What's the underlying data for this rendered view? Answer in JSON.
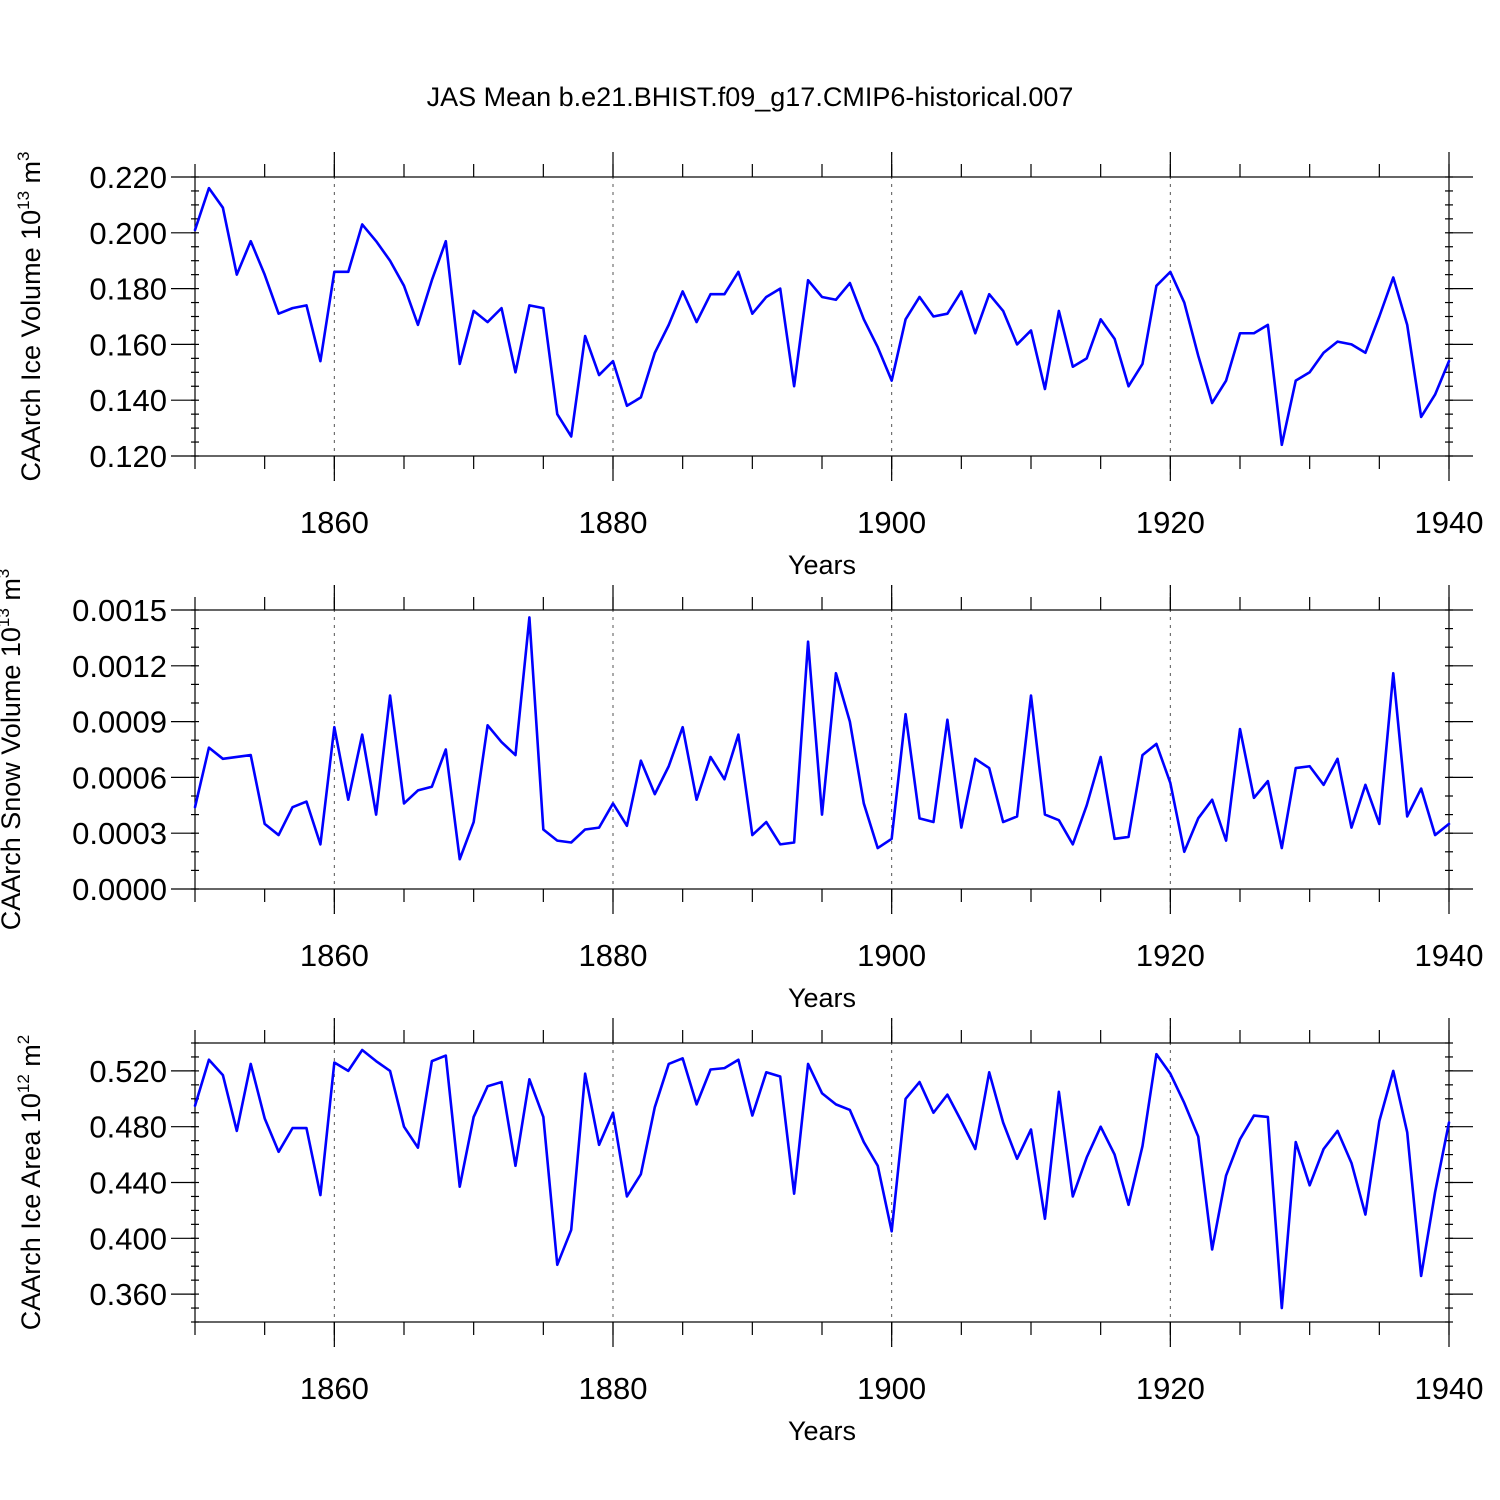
{
  "title": "JAS Mean b.e21.BHIST.f09_g17.CMIP6-historical.007",
  "chart_data": [
    {
      "type": "line",
      "ylabel": "CAArch Ice Volume 10",
      "ylabel_exp": "13",
      "ylabel_unit": " m",
      "ylabel_unit_exp": "3",
      "xlabel": "Years",
      "xlim": [
        1850,
        1940
      ],
      "ylim": [
        0.12,
        0.22
      ],
      "xticks": [
        1860,
        1880,
        1900,
        1920,
        1940
      ],
      "yticks": [
        0.12,
        0.14,
        0.16,
        0.18,
        0.2,
        0.22
      ],
      "ytick_labels": [
        "0.120",
        "0.140",
        "0.160",
        "0.180",
        "0.200",
        "0.220"
      ],
      "y_minor_step": 0.005,
      "grid": "dashed vertical lines at major x ticks",
      "color": "#0000ff",
      "x_start": 1850,
      "values": [
        0.201,
        0.216,
        0.209,
        0.185,
        0.197,
        0.185,
        0.171,
        0.173,
        0.174,
        0.154,
        0.186,
        0.186,
        0.203,
        0.197,
        0.19,
        0.181,
        0.167,
        0.183,
        0.197,
        0.153,
        0.172,
        0.168,
        0.173,
        0.15,
        0.174,
        0.173,
        0.135,
        0.127,
        0.163,
        0.149,
        0.154,
        0.138,
        0.141,
        0.157,
        0.167,
        0.179,
        0.168,
        0.178,
        0.178,
        0.186,
        0.171,
        0.177,
        0.18,
        0.145,
        0.183,
        0.177,
        0.176,
        0.182,
        0.169,
        0.159,
        0.147,
        0.169,
        0.177,
        0.17,
        0.171,
        0.179,
        0.164,
        0.178,
        0.172,
        0.16,
        0.165,
        0.144,
        0.172,
        0.152,
        0.155,
        0.169,
        0.162,
        0.145,
        0.153,
        0.181,
        0.186,
        0.175,
        0.156,
        0.139,
        0.147,
        0.164,
        0.164,
        0.167,
        0.124,
        0.147,
        0.15,
        0.157,
        0.161,
        0.16,
        0.157,
        0.17,
        0.184,
        0.167,
        0.134,
        0.142,
        0.154
      ]
    },
    {
      "type": "line",
      "ylabel": "CAArch Snow Volume 10",
      "ylabel_exp": "13",
      "ylabel_unit": " m",
      "ylabel_unit_exp": "3",
      "xlabel": "Years",
      "xlim": [
        1850,
        1940
      ],
      "ylim": [
        0,
        0.0015
      ],
      "xticks": [
        1860,
        1880,
        1900,
        1920,
        1940
      ],
      "yticks": [
        0,
        0.0003,
        0.0006,
        0.0009,
        0.0012,
        0.0015
      ],
      "ytick_labels": [
        "0.0000",
        "0.0003",
        "0.0006",
        "0.0009",
        "0.0012",
        "0.0015"
      ],
      "y_minor_step": 0.0001,
      "grid": "dashed vertical lines at major x ticks",
      "color": "#0000ff",
      "x_start": 1850,
      "values": [
        0.00044,
        0.00076,
        0.0007,
        0.00071,
        0.00072,
        0.00035,
        0.00029,
        0.00044,
        0.00047,
        0.00024,
        0.00087,
        0.00048,
        0.00083,
        0.0004,
        0.00104,
        0.00046,
        0.00053,
        0.00055,
        0.00075,
        0.00016,
        0.00036,
        0.00088,
        0.00079,
        0.00072,
        0.00146,
        0.00032,
        0.00026,
        0.00025,
        0.00032,
        0.00033,
        0.00046,
        0.00034,
        0.00069,
        0.00051,
        0.00066,
        0.00087,
        0.00048,
        0.00071,
        0.00059,
        0.00083,
        0.00029,
        0.00036,
        0.00024,
        0.00025,
        0.00133,
        0.0004,
        0.00116,
        0.0009,
        0.00046,
        0.00022,
        0.00027,
        0.00094,
        0.00038,
        0.00036,
        0.00091,
        0.00033,
        0.0007,
        0.00065,
        0.00036,
        0.00039,
        0.00104,
        0.0004,
        0.00037,
        0.00024,
        0.00045,
        0.00071,
        0.00027,
        0.00028,
        0.00072,
        0.00078,
        0.00057,
        0.0002,
        0.00038,
        0.00048,
        0.00026,
        0.00086,
        0.00049,
        0.00058,
        0.00022,
        0.00065,
        0.00066,
        0.00056,
        0.0007,
        0.00033,
        0.00056,
        0.00035,
        0.00116,
        0.00039,
        0.00054,
        0.00029,
        0.00035
      ]
    },
    {
      "type": "line",
      "ylabel": "CAArch Ice Area 10",
      "ylabel_exp": "12",
      "ylabel_unit": " m",
      "ylabel_unit_exp": "2",
      "xlabel": "Years",
      "xlim": [
        1850,
        1940
      ],
      "ylim": [
        0.34,
        0.54
      ],
      "xticks": [
        1860,
        1880,
        1900,
        1920,
        1940
      ],
      "yticks": [
        0.36,
        0.4,
        0.44,
        0.48,
        0.52
      ],
      "ytick_labels": [
        "0.360",
        "0.400",
        "0.440",
        "0.480",
        "0.520"
      ],
      "y_minor_step": 0.01,
      "grid": "dashed vertical lines at major x ticks",
      "color": "#0000ff",
      "x_start": 1850,
      "values": [
        0.495,
        0.528,
        0.517,
        0.477,
        0.525,
        0.486,
        0.462,
        0.479,
        0.479,
        0.431,
        0.526,
        0.52,
        0.535,
        0.527,
        0.52,
        0.48,
        0.465,
        0.527,
        0.531,
        0.437,
        0.487,
        0.509,
        0.512,
        0.452,
        0.514,
        0.487,
        0.381,
        0.406,
        0.518,
        0.467,
        0.49,
        0.43,
        0.446,
        0.494,
        0.525,
        0.529,
        0.496,
        0.521,
        0.522,
        0.528,
        0.488,
        0.519,
        0.516,
        0.432,
        0.525,
        0.504,
        0.496,
        0.492,
        0.469,
        0.452,
        0.405,
        0.5,
        0.512,
        0.49,
        0.503,
        0.484,
        0.464,
        0.519,
        0.483,
        0.457,
        0.478,
        0.414,
        0.505,
        0.43,
        0.458,
        0.48,
        0.46,
        0.424,
        0.466,
        0.532,
        0.518,
        0.497,
        0.473,
        0.392,
        0.445,
        0.471,
        0.488,
        0.487,
        0.35,
        0.469,
        0.438,
        0.464,
        0.477,
        0.454,
        0.417,
        0.484,
        0.52,
        0.476,
        0.373,
        0.433,
        0.483
      ]
    }
  ]
}
